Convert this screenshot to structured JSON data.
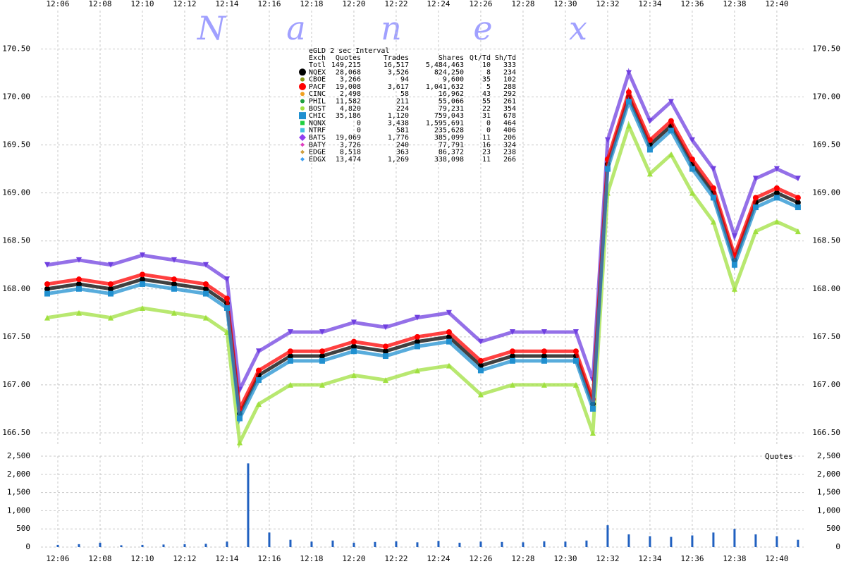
{
  "watermark": [
    "N",
    "a",
    "n",
    "e",
    "x"
  ],
  "stats": {
    "title": "eGLD 2 sec Interval",
    "columns": [
      "Exch",
      "Quotes",
      "Trades",
      "Shares",
      "Qt/Td",
      "Sh/Td"
    ],
    "rows": [
      {
        "cells": [
          "Totl",
          "149,215",
          "16,517",
          "5,484,463",
          "10",
          "333"
        ]
      },
      {
        "cells": [
          "NQEX",
          "28,068",
          "3,526",
          "824,250",
          "8",
          "234"
        ],
        "color": "#000000",
        "shape": "circle"
      },
      {
        "cells": [
          "CBOE",
          "3,266",
          "94",
          "9,600",
          "35",
          "102"
        ],
        "color": "#8a9a1a",
        "shape": "dot"
      },
      {
        "cells": [
          "PACF",
          "19,008",
          "3,617",
          "1,041,632",
          "5",
          "288"
        ],
        "color": "#ff0000",
        "shape": "circle"
      },
      {
        "cells": [
          "CINC",
          "2,498",
          "58",
          "16,962",
          "43",
          "292"
        ],
        "color": "#f0a020",
        "shape": "dot"
      },
      {
        "cells": [
          "PHIL",
          "11,582",
          "211",
          "55,066",
          "55",
          "261"
        ],
        "color": "#20a040",
        "shape": "dot"
      },
      {
        "cells": [
          "BOST",
          "4,820",
          "224",
          "79,231",
          "22",
          "354"
        ],
        "color": "#a0e040",
        "shape": "dot"
      },
      {
        "cells": [
          "CHIC",
          "35,186",
          "1,120",
          "759,043",
          "31",
          "678"
        ],
        "color": "#2090d0",
        "shape": "square"
      },
      {
        "cells": [
          "NQNX",
          "0",
          "3,438",
          "1,595,691",
          "0",
          "464"
        ],
        "color": "#20d040",
        "shape": "small-square"
      },
      {
        "cells": [
          "NTRF",
          "0",
          "581",
          "235,628",
          "0",
          "406"
        ],
        "color": "#40c0e0",
        "shape": "small-square"
      },
      {
        "cells": [
          "BATS",
          "19,069",
          "1,776",
          "385,099",
          "11",
          "206"
        ],
        "color": "#9040f0",
        "shape": "diamond"
      },
      {
        "cells": [
          "BATY",
          "3,726",
          "240",
          "77,791",
          "16",
          "324"
        ],
        "color": "#e040c0",
        "shape": "small-diamond"
      },
      {
        "cells": [
          "EDGE",
          "8,518",
          "363",
          "86,372",
          "23",
          "238"
        ],
        "color": "#d0a040",
        "shape": "small-diamond"
      },
      {
        "cells": [
          "EDGX",
          "13,474",
          "1,269",
          "338,098",
          "11",
          "266"
        ],
        "color": "#40a0f0",
        "shape": "small-diamond"
      }
    ]
  },
  "chart_data": [
    {
      "type": "scatter",
      "x": [
        725.5,
        727,
        728.5,
        730,
        731.5,
        733,
        734,
        734.6,
        735.5,
        737,
        738.5,
        740,
        741.5,
        743,
        744.5,
        746,
        747.5,
        749,
        750.5,
        751.3,
        752,
        753,
        754,
        755,
        756,
        757,
        758,
        759,
        760,
        761
      ],
      "xlim": [
        725.2,
        761.27
      ],
      "xticks": [
        {
          "value": 726,
          "label": "12:06"
        },
        {
          "value": 728,
          "label": "12:08"
        },
        {
          "value": 730,
          "label": "12:10"
        },
        {
          "value": 732,
          "label": "12:12"
        },
        {
          "value": 734,
          "label": "12:14"
        },
        {
          "value": 736,
          "label": "12:16"
        },
        {
          "value": 738,
          "label": "12:18"
        },
        {
          "value": 740,
          "label": "12:20"
        },
        {
          "value": 742,
          "label": "12:22"
        },
        {
          "value": 744,
          "label": "12:24"
        },
        {
          "value": 746,
          "label": "12:26"
        },
        {
          "value": 748,
          "label": "12:28"
        },
        {
          "value": 750,
          "label": "12:30"
        },
        {
          "value": 752,
          "label": "12:32"
        },
        {
          "value": 754,
          "label": "12:34"
        },
        {
          "value": 756,
          "label": "12:36"
        },
        {
          "value": 758,
          "label": "12:38"
        },
        {
          "value": 760,
          "label": "12:40"
        }
      ],
      "ylim": [
        166.36,
        170.9
      ],
      "yticks": [
        {
          "value": 166.5,
          "label": "166.50"
        },
        {
          "value": 167,
          "label": "167.00"
        },
        {
          "value": 167.5,
          "label": "167.50"
        },
        {
          "value": 168,
          "label": "168.00"
        },
        {
          "value": 168.5,
          "label": "168.50"
        },
        {
          "value": 169,
          "label": "169.00"
        },
        {
          "value": 169.5,
          "label": "169.50"
        },
        {
          "value": 170,
          "label": "170.00"
        },
        {
          "value": 170.5,
          "label": "170.50"
        }
      ],
      "grid": true,
      "series": [
        {
          "name": "BOST",
          "color": "#a0e040",
          "marker": "triangle-up",
          "values": [
            167.7,
            167.75,
            167.7,
            167.8,
            167.75,
            167.7,
            167.55,
            166.4,
            166.8,
            167.0,
            167.0,
            167.1,
            167.05,
            167.15,
            167.2,
            166.9,
            167.0,
            167.0,
            167.0,
            166.5,
            169.0,
            169.7,
            169.2,
            169.4,
            169.0,
            168.7,
            168.0,
            168.6,
            168.7,
            168.6
          ]
        },
        {
          "name": "BATS",
          "color": "#7040e0",
          "marker": "triangle-down",
          "values": [
            168.25,
            168.3,
            168.25,
            168.35,
            168.3,
            168.25,
            168.1,
            166.95,
            167.35,
            167.55,
            167.55,
            167.65,
            167.6,
            167.7,
            167.75,
            167.45,
            167.55,
            167.55,
            167.55,
            167.05,
            169.55,
            170.25,
            169.75,
            169.95,
            169.55,
            169.25,
            168.55,
            169.15,
            169.25,
            169.15
          ]
        },
        {
          "name": "NQEX",
          "color": "#000000",
          "marker": "circle",
          "values": [
            168.0,
            168.05,
            168.0,
            168.1,
            168.05,
            168.0,
            167.85,
            166.7,
            167.1,
            167.3,
            167.3,
            167.4,
            167.35,
            167.45,
            167.5,
            167.2,
            167.3,
            167.3,
            167.3,
            166.8,
            169.3,
            170.0,
            169.5,
            169.7,
            169.3,
            169.0,
            168.3,
            168.9,
            169.0,
            168.9
          ]
        },
        {
          "name": "PACF",
          "color": "#ff0000",
          "marker": "circle",
          "values": [
            168.05,
            168.1,
            168.05,
            168.15,
            168.1,
            168.05,
            167.9,
            166.75,
            167.15,
            167.35,
            167.35,
            167.45,
            167.4,
            167.5,
            167.55,
            167.25,
            167.35,
            167.35,
            167.35,
            166.85,
            169.35,
            170.05,
            169.55,
            169.75,
            169.35,
            169.05,
            168.35,
            168.95,
            169.05,
            168.95
          ]
        },
        {
          "name": "CHIC",
          "color": "#2090d0",
          "marker": "square",
          "values": [
            167.95,
            168.0,
            167.95,
            168.05,
            168.0,
            167.95,
            167.8,
            166.65,
            167.05,
            167.25,
            167.25,
            167.35,
            167.3,
            167.4,
            167.45,
            167.15,
            167.25,
            167.25,
            167.25,
            166.75,
            169.25,
            169.95,
            169.45,
            169.65,
            169.25,
            168.95,
            168.25,
            168.85,
            168.95,
            168.85
          ]
        }
      ]
    },
    {
      "type": "bar",
      "label": "Quotes",
      "x": [
        726,
        727,
        728,
        729,
        730,
        731,
        732,
        733,
        734,
        735,
        736,
        737,
        738,
        739,
        740,
        741,
        742,
        743,
        744,
        745,
        746,
        747,
        748,
        749,
        750,
        751,
        752,
        753,
        754,
        755,
        756,
        757,
        758,
        759,
        760,
        761
      ],
      "values": [
        60,
        80,
        120,
        50,
        60,
        70,
        80,
        90,
        150,
        2300,
        400,
        200,
        150,
        180,
        120,
        140,
        160,
        130,
        170,
        120,
        150,
        140,
        130,
        160,
        150,
        180,
        600,
        350,
        300,
        280,
        320,
        400,
        500,
        350,
        300,
        200
      ],
      "color": "#2060c0",
      "xlim": [
        725.2,
        761.27
      ],
      "xticks": [
        {
          "value": 726,
          "label": "12:06"
        },
        {
          "value": 728,
          "label": "12:08"
        },
        {
          "value": 730,
          "label": "12:10"
        },
        {
          "value": 732,
          "label": "12:12"
        },
        {
          "value": 734,
          "label": "12:14"
        },
        {
          "value": 736,
          "label": "12:16"
        },
        {
          "value": 738,
          "label": "12:18"
        },
        {
          "value": 740,
          "label": "12:20"
        },
        {
          "value": 742,
          "label": "12:22"
        },
        {
          "value": 744,
          "label": "12:24"
        },
        {
          "value": 746,
          "label": "12:26"
        },
        {
          "value": 748,
          "label": "12:28"
        },
        {
          "value": 750,
          "label": "12:30"
        },
        {
          "value": 752,
          "label": "12:32"
        },
        {
          "value": 754,
          "label": "12:34"
        },
        {
          "value": 756,
          "label": "12:36"
        },
        {
          "value": 758,
          "label": "12:38"
        },
        {
          "value": 760,
          "label": "12:40"
        }
      ],
      "ylim": [
        0,
        2500
      ],
      "yticks": [
        0,
        500,
        {
          "value": 1000,
          "label": "1,000"
        },
        {
          "value": 1500,
          "label": "1,500"
        },
        {
          "value": 2000,
          "label": "2,000"
        },
        {
          "value": 2500,
          "label": "2,500"
        }
      ],
      "grid": true
    }
  ]
}
